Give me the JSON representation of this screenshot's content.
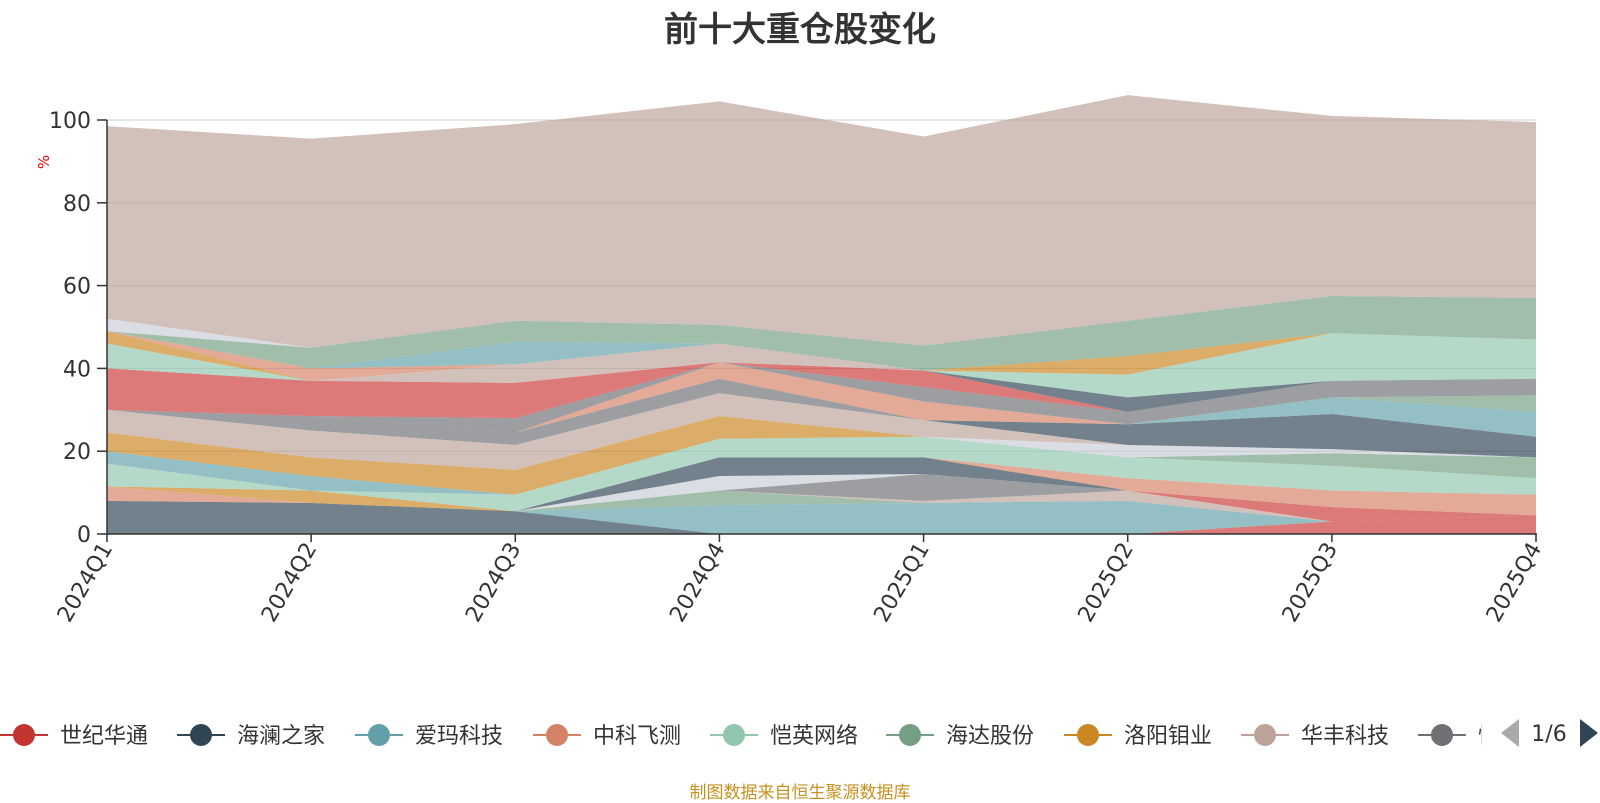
{
  "source_note": "制图数据来自恒生聚源数据库",
  "chart_data": {
    "type": "area",
    "stacked": true,
    "title": "前十大重仓股变化",
    "ylabel": "%",
    "ylim": [
      0,
      100
    ],
    "yticks": [
      0,
      20,
      40,
      60,
      80,
      100
    ],
    "grid": true,
    "legend_position": "bottom",
    "categories": [
      "2024Q1",
      "2024Q2",
      "2024Q3",
      "2024Q4",
      "2025Q1",
      "2025Q2",
      "2025Q3",
      "2025Q4"
    ],
    "series": [
      {
        "color": "#cc3a3a",
        "values": [
          0,
          0,
          0,
          0,
          0,
          0,
          3,
          4.5
        ]
      },
      {
        "color": "#2f4554",
        "values": [
          8,
          7.5,
          5.5,
          0,
          0,
          0,
          0,
          0
        ]
      },
      {
        "color": "#61a0a8",
        "values": [
          0,
          0,
          0,
          7,
          7.5,
          8,
          0,
          0
        ]
      },
      {
        "color": "#d48265",
        "values": [
          3.5,
          0,
          0,
          0,
          0,
          0,
          0,
          0
        ]
      },
      {
        "color": "#91c7ae",
        "values": [
          0,
          0,
          0,
          0,
          0,
          0,
          0,
          0
        ]
      },
      {
        "color": "#749f83",
        "values": [
          0,
          0,
          0,
          3.5,
          0,
          0,
          0,
          0
        ]
      },
      {
        "color": "#ca8622",
        "values": [
          0,
          3,
          0,
          0,
          0,
          0,
          0,
          0
        ]
      },
      {
        "color": "#bda29a",
        "values": [
          0,
          0,
          0,
          0,
          0.5,
          2.5,
          0,
          0
        ]
      },
      {
        "color": "#6e7074",
        "values": [
          0,
          0,
          0,
          0,
          6.5,
          0,
          0,
          0
        ]
      },
      {
        "color": "#c9cdd6",
        "values": [
          0,
          0,
          0,
          3.5,
          0,
          0,
          0,
          0
        ]
      },
      {
        "color": "#cc3a3a",
        "values": [
          0,
          0,
          0,
          0,
          0,
          0,
          3.5,
          0
        ]
      },
      {
        "color": "#2f4554",
        "values": [
          0,
          0,
          0,
          4.5,
          4,
          0,
          0,
          0
        ]
      },
      {
        "color": "#d48265",
        "values": [
          0,
          0,
          0,
          0,
          0,
          3,
          4,
          5
        ]
      },
      {
        "color": "#91c7ae",
        "values": [
          5.5,
          0,
          4,
          4.5,
          5,
          5,
          6,
          4
        ]
      },
      {
        "color": "#749f83",
        "values": [
          0,
          0,
          0,
          0,
          0,
          0,
          3,
          5
        ]
      },
      {
        "color": "#c9cdd6",
        "values": [
          0,
          0,
          0,
          0,
          0,
          3,
          1,
          0
        ]
      },
      {
        "color": "#61a0a8",
        "values": [
          3,
          3.5,
          0,
          0,
          0,
          0,
          0,
          0
        ]
      },
      {
        "color": "#ca8622",
        "values": [
          4.5,
          4.5,
          6,
          5.5,
          0,
          0,
          0,
          0
        ]
      },
      {
        "color": "#bda29a",
        "values": [
          5.5,
          6.5,
          6,
          5.5,
          4,
          0,
          0,
          0
        ]
      },
      {
        "color": "#2f4554",
        "values": [
          0,
          0,
          0,
          0,
          0,
          5,
          8.5,
          5
        ]
      },
      {
        "color": "#6e7074",
        "values": [
          0,
          3.5,
          3,
          3.5,
          0,
          0,
          0,
          0
        ]
      },
      {
        "color": "#61a0a8",
        "values": [
          0,
          0,
          0,
          0,
          0,
          0,
          4,
          6
        ]
      },
      {
        "color": "#d48265",
        "values": [
          0,
          0,
          0,
          4,
          4.5,
          0,
          0,
          0
        ]
      },
      {
        "color": "#749f83",
        "values": [
          0,
          0,
          0,
          0,
          0,
          0,
          0,
          4
        ]
      },
      {
        "color": "#6e7074",
        "values": [
          0,
          0,
          3.5,
          0,
          3.5,
          3,
          4,
          4
        ]
      },
      {
        "color": "#cc3a3a",
        "values": [
          10,
          8.5,
          8.5,
          0,
          4,
          0,
          0,
          0
        ]
      },
      {
        "color": "#2f4554",
        "values": [
          0,
          0,
          0,
          0,
          0,
          3.5,
          0,
          0
        ]
      },
      {
        "color": "#bda29a",
        "values": [
          0,
          0,
          4.5,
          4.5,
          0,
          0,
          0,
          0
        ]
      },
      {
        "color": "#91c7ae",
        "values": [
          6,
          0,
          0,
          0,
          0,
          5.5,
          11.5,
          9.5
        ]
      },
      {
        "color": "#ca8622",
        "values": [
          3,
          0,
          0,
          0,
          0,
          4.5,
          0,
          0
        ]
      },
      {
        "color": "#d48265",
        "values": [
          0,
          3,
          0,
          0,
          0,
          0,
          0,
          0
        ]
      },
      {
        "color": "#61a0a8",
        "values": [
          0,
          0,
          5.5,
          0,
          0,
          0,
          0,
          0
        ]
      },
      {
        "color": "#749f83",
        "values": [
          0,
          5,
          5,
          4.5,
          6,
          8.5,
          9,
          10
        ]
      },
      {
        "color": "#c9cdd6",
        "values": [
          3,
          0,
          0,
          0,
          0,
          0,
          0,
          0
        ]
      },
      {
        "color": "#bda29a",
        "values": [
          46.5,
          50.5,
          47.5,
          54,
          50.5,
          54.5,
          43.5,
          42.5
        ]
      }
    ],
    "legend": [
      {
        "label": "世纪华通",
        "color": "#c23531"
      },
      {
        "label": "海澜之家",
        "color": "#2f4554"
      },
      {
        "label": "爱玛科技",
        "color": "#61a0a8"
      },
      {
        "label": "中科飞测",
        "color": "#d48265"
      },
      {
        "label": "恺英网络",
        "color": "#91c7ae"
      },
      {
        "label": "海达股份",
        "color": "#749f83"
      },
      {
        "label": "洛阳钼业",
        "color": "#ca8622"
      },
      {
        "label": "华丰科技",
        "color": "#bda29a"
      },
      {
        "label": "恺",
        "color": "#6e7074"
      }
    ],
    "legend_page": "1/6"
  }
}
